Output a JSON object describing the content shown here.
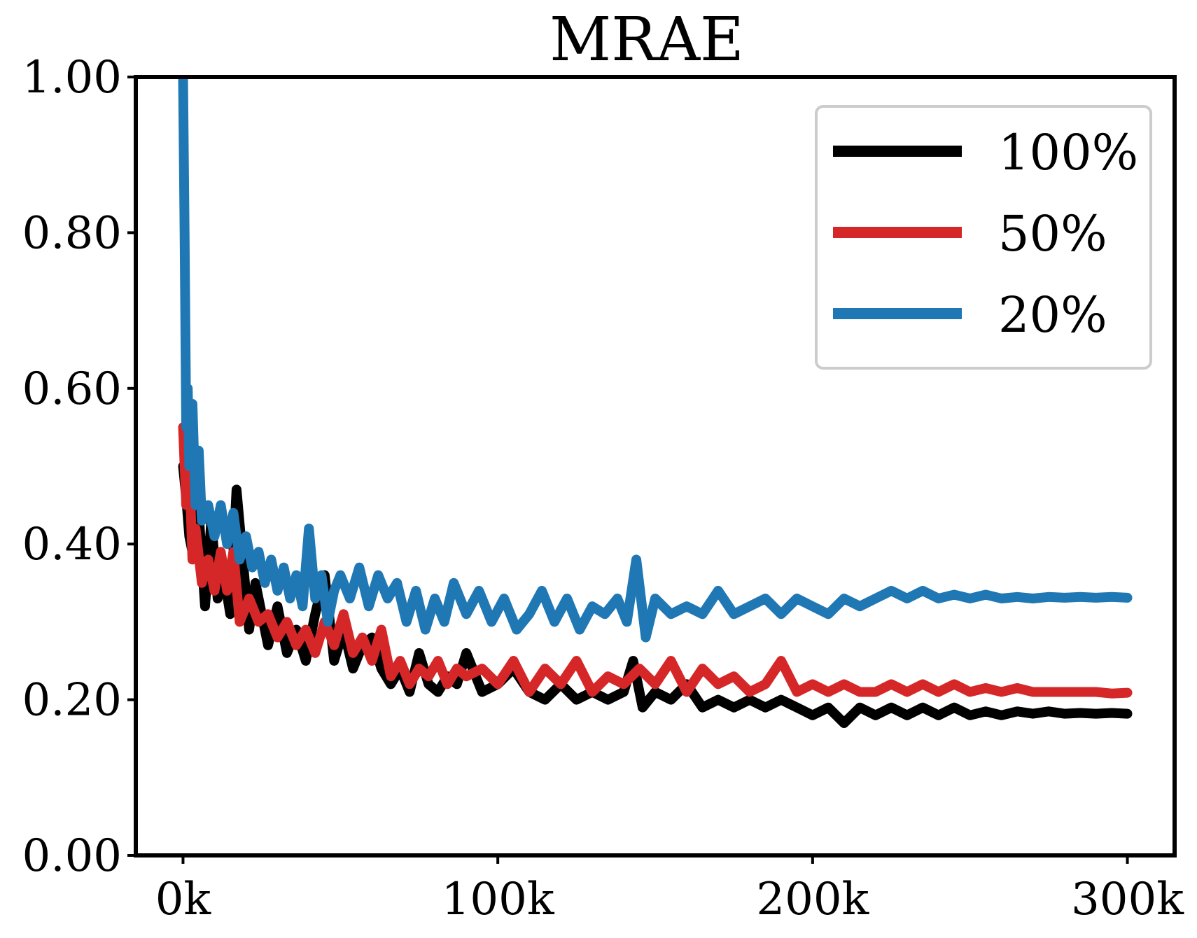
{
  "chart_data": {
    "type": "line",
    "title": "MRAE",
    "xlabel": "",
    "ylabel": "",
    "xlim": [
      -15000,
      315000
    ],
    "ylim": [
      0,
      1
    ],
    "xticks": [
      0,
      100000,
      200000,
      300000
    ],
    "xtick_labels": [
      "0k",
      "100k",
      "200k",
      "300k"
    ],
    "yticks": [
      0,
      0.2,
      0.4,
      0.6,
      0.8,
      1.0
    ],
    "ytick_labels": [
      "0.00",
      "0.20",
      "0.40",
      "0.60",
      "0.80",
      "1.00"
    ],
    "grid": false,
    "legend_position": "top-right",
    "series": [
      {
        "name": "100%",
        "color": "#000000",
        "x": [
          0,
          1000,
          2000,
          3000,
          5000,
          7000,
          9000,
          11000,
          13000,
          15000,
          17000,
          19000,
          21000,
          23000,
          25000,
          27000,
          30000,
          33000,
          36000,
          39000,
          42000,
          45000,
          48000,
          51000,
          54000,
          57000,
          60000,
          63000,
          66000,
          69000,
          72000,
          75000,
          78000,
          81000,
          84000,
          87000,
          90000,
          95000,
          100000,
          105000,
          110000,
          115000,
          120000,
          125000,
          130000,
          135000,
          140000,
          143000,
          146000,
          150000,
          155000,
          160000,
          165000,
          170000,
          175000,
          180000,
          185000,
          190000,
          195000,
          200000,
          205000,
          210000,
          215000,
          220000,
          225000,
          230000,
          235000,
          240000,
          245000,
          250000,
          255000,
          260000,
          265000,
          270000,
          275000,
          280000,
          285000,
          290000,
          295000,
          300000
        ],
        "y": [
          0.5,
          0.46,
          0.41,
          0.39,
          0.44,
          0.32,
          0.43,
          0.33,
          0.36,
          0.31,
          0.47,
          0.38,
          0.29,
          0.35,
          0.31,
          0.27,
          0.32,
          0.26,
          0.29,
          0.25,
          0.31,
          0.36,
          0.25,
          0.29,
          0.24,
          0.27,
          0.28,
          0.24,
          0.22,
          0.24,
          0.21,
          0.26,
          0.22,
          0.21,
          0.23,
          0.22,
          0.26,
          0.21,
          0.22,
          0.24,
          0.21,
          0.2,
          0.22,
          0.2,
          0.21,
          0.2,
          0.21,
          0.25,
          0.19,
          0.21,
          0.2,
          0.22,
          0.19,
          0.2,
          0.19,
          0.2,
          0.19,
          0.2,
          0.19,
          0.18,
          0.19,
          0.17,
          0.19,
          0.18,
          0.19,
          0.18,
          0.19,
          0.18,
          0.19,
          0.18,
          0.185,
          0.18,
          0.185,
          0.182,
          0.185,
          0.182,
          0.183,
          0.182,
          0.183,
          0.182
        ]
      },
      {
        "name": "50%",
        "color": "#d62728",
        "x": [
          0,
          1000,
          2000,
          3000,
          4000,
          6000,
          8000,
          10000,
          12000,
          14000,
          16000,
          18000,
          21000,
          24000,
          27000,
          30000,
          33000,
          36000,
          39000,
          42000,
          45000,
          48000,
          51000,
          54000,
          57000,
          60000,
          63000,
          66000,
          69000,
          72000,
          75000,
          78000,
          81000,
          84000,
          87000,
          90000,
          95000,
          100000,
          105000,
          110000,
          115000,
          120000,
          125000,
          130000,
          135000,
          140000,
          145000,
          150000,
          155000,
          160000,
          165000,
          170000,
          175000,
          180000,
          185000,
          190000,
          195000,
          200000,
          205000,
          210000,
          215000,
          220000,
          225000,
          230000,
          235000,
          240000,
          245000,
          250000,
          255000,
          260000,
          265000,
          270000,
          275000,
          280000,
          285000,
          290000,
          295000,
          300000
        ],
        "y": [
          0.55,
          0.45,
          0.5,
          0.38,
          0.42,
          0.35,
          0.38,
          0.34,
          0.39,
          0.34,
          0.39,
          0.3,
          0.33,
          0.3,
          0.31,
          0.28,
          0.3,
          0.27,
          0.29,
          0.26,
          0.3,
          0.27,
          0.31,
          0.26,
          0.28,
          0.25,
          0.29,
          0.23,
          0.25,
          0.22,
          0.24,
          0.23,
          0.25,
          0.22,
          0.24,
          0.23,
          0.24,
          0.22,
          0.25,
          0.21,
          0.24,
          0.22,
          0.25,
          0.21,
          0.23,
          0.22,
          0.24,
          0.22,
          0.25,
          0.21,
          0.24,
          0.22,
          0.23,
          0.21,
          0.22,
          0.25,
          0.21,
          0.22,
          0.21,
          0.22,
          0.21,
          0.21,
          0.22,
          0.21,
          0.22,
          0.21,
          0.22,
          0.21,
          0.215,
          0.21,
          0.215,
          0.21,
          0.21,
          0.21,
          0.21,
          0.21,
          0.208,
          0.209
        ]
      },
      {
        "name": "20%",
        "color": "#1f77b4",
        "x": [
          0,
          500,
          1000,
          1500,
          2000,
          3000,
          4000,
          5000,
          6000,
          8000,
          10000,
          12000,
          14000,
          16000,
          18000,
          20000,
          22000,
          24000,
          26000,
          28000,
          30000,
          32000,
          34000,
          36000,
          38000,
          40000,
          42000,
          44000,
          46000,
          48000,
          50000,
          53000,
          56000,
          59000,
          62000,
          65000,
          68000,
          71000,
          74000,
          77000,
          80000,
          83000,
          86000,
          90000,
          94000,
          98000,
          102000,
          106000,
          110000,
          114000,
          118000,
          122000,
          126000,
          130000,
          134000,
          138000,
          141000,
          144000,
          147000,
          150000,
          155000,
          160000,
          165000,
          170000,
          175000,
          180000,
          185000,
          190000,
          195000,
          200000,
          205000,
          210000,
          215000,
          220000,
          225000,
          230000,
          235000,
          240000,
          245000,
          250000,
          255000,
          260000,
          265000,
          270000,
          275000,
          280000,
          285000,
          290000,
          295000,
          300000
        ],
        "y": [
          1.0,
          0.8,
          0.55,
          0.6,
          0.5,
          0.58,
          0.45,
          0.52,
          0.43,
          0.45,
          0.41,
          0.45,
          0.4,
          0.44,
          0.38,
          0.41,
          0.37,
          0.39,
          0.35,
          0.38,
          0.34,
          0.37,
          0.33,
          0.36,
          0.32,
          0.42,
          0.33,
          0.36,
          0.3,
          0.34,
          0.36,
          0.33,
          0.37,
          0.32,
          0.36,
          0.33,
          0.35,
          0.3,
          0.34,
          0.29,
          0.33,
          0.3,
          0.35,
          0.31,
          0.34,
          0.3,
          0.33,
          0.29,
          0.31,
          0.34,
          0.3,
          0.33,
          0.29,
          0.32,
          0.31,
          0.33,
          0.3,
          0.38,
          0.28,
          0.33,
          0.31,
          0.32,
          0.31,
          0.34,
          0.31,
          0.32,
          0.33,
          0.31,
          0.33,
          0.32,
          0.31,
          0.33,
          0.32,
          0.33,
          0.34,
          0.33,
          0.34,
          0.33,
          0.335,
          0.33,
          0.335,
          0.33,
          0.332,
          0.33,
          0.332,
          0.331,
          0.332,
          0.331,
          0.332,
          0.331
        ]
      }
    ]
  }
}
